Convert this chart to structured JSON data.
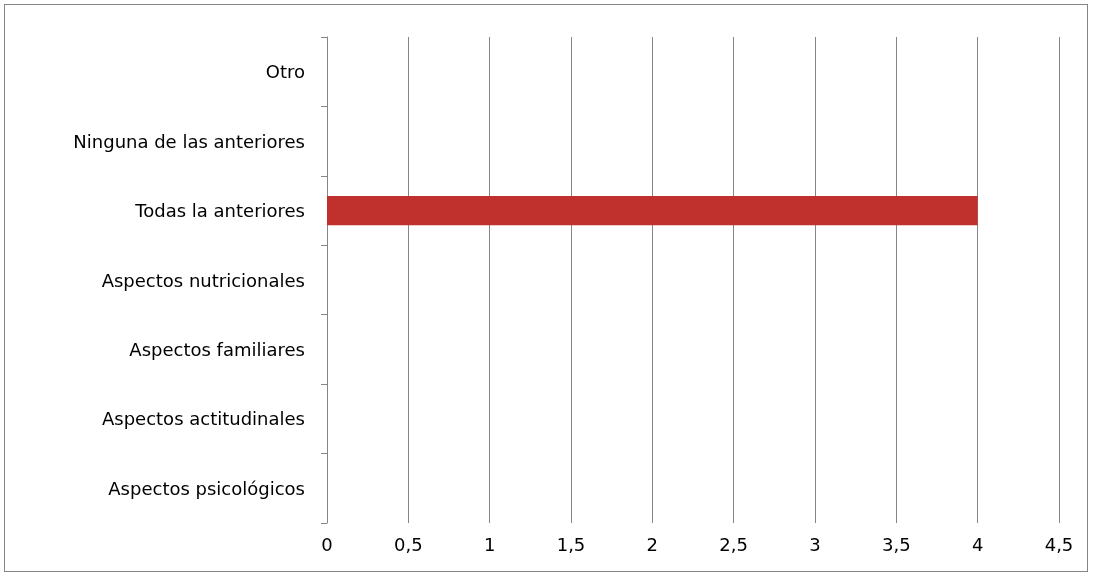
{
  "chart_data": {
    "type": "bar",
    "orientation": "horizontal",
    "categories": [
      "Otro",
      "Ninguna de las anteriores",
      "Todas la anteriores",
      "Aspectos nutricionales",
      "Aspectos familiares",
      "Aspectos actitudinales",
      "Aspectos psicológicos"
    ],
    "values": [
      0,
      0,
      4,
      0,
      0,
      0,
      0
    ],
    "color": "#c0312e",
    "xlim": [
      0,
      4.5
    ],
    "xticks": [
      0,
      {
        "value": 0.5,
        "label": "0,5"
      },
      1,
      {
        "value": 1.5,
        "label": "1,5"
      },
      2,
      {
        "value": 2.5,
        "label": "2,5"
      },
      3,
      {
        "value": 3.5,
        "label": "3,5"
      },
      4,
      {
        "value": 4.5,
        "label": "4,5"
      }
    ],
    "grid": "x"
  }
}
